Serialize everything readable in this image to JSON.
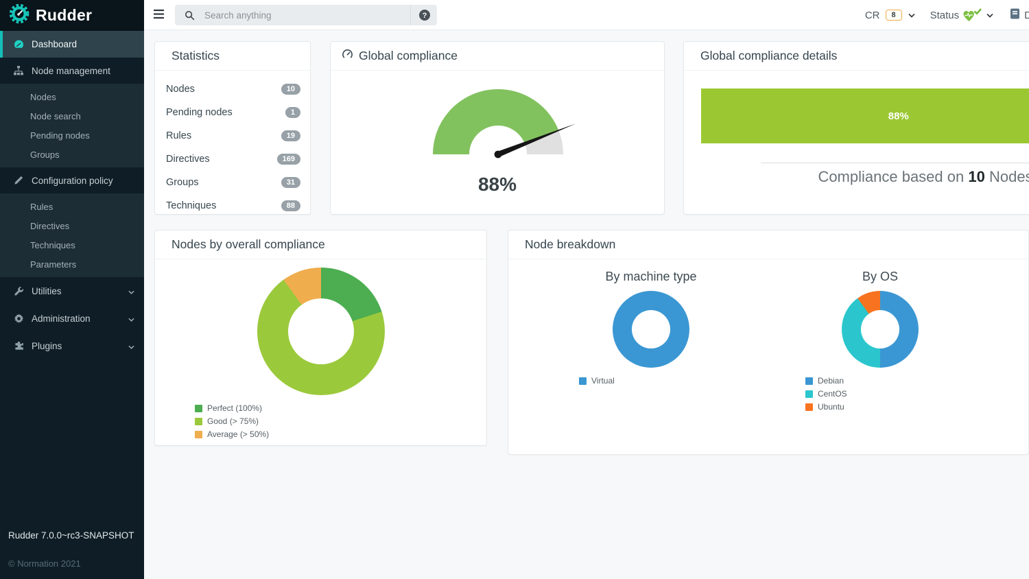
{
  "brand": {
    "name": "Rudder",
    "version": "Rudder 7.0.0~rc3-SNAPSHOT",
    "copyright": "© Normation 2021"
  },
  "topbar": {
    "search_placeholder": "Search anything",
    "cr_label": "CR",
    "cr_count": "8",
    "status_label": "Status",
    "docs_label": "D"
  },
  "sidebar": {
    "items": [
      {
        "label": "Dashboard"
      },
      {
        "label": "Node management",
        "children": [
          {
            "label": "Nodes"
          },
          {
            "label": "Node search"
          },
          {
            "label": "Pending nodes"
          },
          {
            "label": "Groups"
          }
        ]
      },
      {
        "label": "Configuration policy",
        "children": [
          {
            "label": "Rules"
          },
          {
            "label": "Directives"
          },
          {
            "label": "Techniques"
          },
          {
            "label": "Parameters"
          }
        ]
      },
      {
        "label": "Utilities"
      },
      {
        "label": "Administration"
      },
      {
        "label": "Plugins"
      }
    ]
  },
  "cards": {
    "statistics": {
      "title": "Statistics",
      "rows": [
        {
          "label": "Nodes",
          "value": "10"
        },
        {
          "label": "Pending nodes",
          "value": "1"
        },
        {
          "label": "Rules",
          "value": "19"
        },
        {
          "label": "Directives",
          "value": "169"
        },
        {
          "label": "Groups",
          "value": "31"
        },
        {
          "label": "Techniques",
          "value": "88"
        }
      ]
    },
    "global_compliance": {
      "title": "Global compliance"
    },
    "global_compliance_details": {
      "title": "Global compliance details",
      "caption_prefix": "Compliance based on ",
      "caption_count": "10",
      "caption_suffix": " Nodes"
    },
    "nodes_by_compliance": {
      "title": "Nodes by overall compliance"
    },
    "node_breakdown": {
      "title": "Node breakdown"
    }
  },
  "chart_data": [
    {
      "type": "gauge",
      "title": "Global compliance",
      "value": 88,
      "max": 100,
      "label": "88%",
      "color_fill": "#82c25e",
      "color_track": "#e0e0e0",
      "needle_color": "#161616"
    },
    {
      "type": "bar",
      "title": "Global compliance details",
      "categories": [
        "Global compliance"
      ],
      "values": [
        88
      ],
      "unit": "%",
      "bar_label": "88%",
      "color": "#9bc832",
      "xlim": [
        0,
        100
      ],
      "annotation": "Compliance based on 10 Nodes"
    },
    {
      "type": "pie",
      "title": "Nodes by overall compliance",
      "labels": [
        "Perfect (100%)",
        "Good (> 75%)",
        "Average (> 50%)"
      ],
      "values_percent": [
        20,
        70,
        10
      ],
      "colors": [
        "#4cae51",
        "#9bc93c",
        "#f0ad4e"
      ],
      "hole": 0.52,
      "legend_position": "bottom-left"
    },
    {
      "type": "pie",
      "title": "By machine type",
      "labels": [
        "Virtual"
      ],
      "values_percent": [
        100
      ],
      "colors": [
        "#3b97d3"
      ],
      "hole": 0.5,
      "legend_position": "bottom-left"
    },
    {
      "type": "pie",
      "title": "By OS",
      "labels": [
        "Debian",
        "CentOS",
        "Ubuntu"
      ],
      "values_percent": [
        50,
        40,
        10
      ],
      "colors": [
        "#3b97d3",
        "#2bc6cd",
        "#f8731f"
      ],
      "hole": 0.5,
      "legend_position": "bottom-left"
    }
  ],
  "colors": {
    "brand_teal": "#13beb7",
    "sidebar_bg": "#0f1e26",
    "sidebar_panel_bg": "#1d2d35",
    "active_item_bg": "#2e434b",
    "stat_badge_bg": "#97a1a7",
    "cr_badge_border": "#f0ad4e",
    "status_icon_green": "#7cc140"
  }
}
